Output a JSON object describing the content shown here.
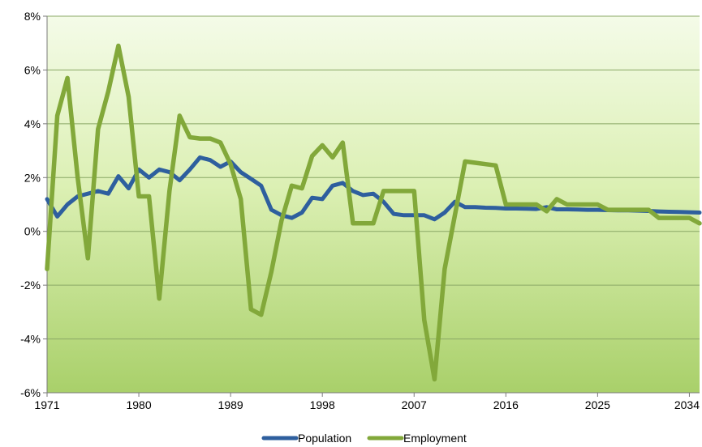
{
  "chart_data": {
    "type": "line",
    "x": [
      1971,
      1972,
      1973,
      1974,
      1975,
      1976,
      1977,
      1978,
      1979,
      1980,
      1981,
      1982,
      1983,
      1984,
      1985,
      1986,
      1987,
      1988,
      1989,
      1990,
      1991,
      1992,
      1993,
      1994,
      1995,
      1996,
      1997,
      1998,
      1999,
      2000,
      2001,
      2002,
      2003,
      2004,
      2005,
      2006,
      2007,
      2008,
      2009,
      2010,
      2011,
      2012,
      2013,
      2014,
      2015,
      2016,
      2017,
      2018,
      2019,
      2020,
      2021,
      2022,
      2023,
      2024,
      2025,
      2026,
      2027,
      2028,
      2029,
      2030,
      2031,
      2032,
      2033,
      2034,
      2035
    ],
    "xticks": [
      "1971",
      "1980",
      "1989",
      "1998",
      "2007",
      "2016",
      "2025",
      "2034"
    ],
    "ylim": [
      -6,
      8
    ],
    "yticks": [
      "8%",
      "6%",
      "4%",
      "2%",
      "0%",
      "-2%",
      "-4%",
      "-6%"
    ],
    "grid": true,
    "legend": "bottom",
    "series": [
      {
        "name": "Population",
        "color": "#2e5f9e",
        "values": [
          1.2,
          0.55,
          1.0,
          1.3,
          1.4,
          1.5,
          1.4,
          2.05,
          1.6,
          2.3,
          2.0,
          2.3,
          2.2,
          1.9,
          2.3,
          2.75,
          2.65,
          2.4,
          2.6,
          2.2,
          1.95,
          1.7,
          0.8,
          0.6,
          0.5,
          0.7,
          1.25,
          1.2,
          1.7,
          1.8,
          1.5,
          1.35,
          1.4,
          1.1,
          0.65,
          0.6,
          0.6,
          0.6,
          0.45,
          0.7,
          1.1,
          0.9,
          0.9,
          0.88,
          0.87,
          0.85,
          0.85,
          0.84,
          0.83,
          0.9,
          0.82,
          0.82,
          0.81,
          0.8,
          0.8,
          0.79,
          0.78,
          0.78,
          0.77,
          0.76,
          0.74,
          0.73,
          0.72,
          0.71,
          0.7
        ]
      },
      {
        "name": "Employment",
        "color": "#82a83a",
        "values": [
          -1.4,
          4.3,
          5.7,
          2.0,
          -1.0,
          3.8,
          5.2,
          6.9,
          5.0,
          1.3,
          1.3,
          -2.5,
          1.5,
          4.3,
          3.5,
          3.45,
          3.45,
          3.3,
          2.5,
          1.2,
          -2.9,
          -3.1,
          -1.5,
          0.4,
          1.7,
          1.6,
          2.8,
          3.2,
          2.75,
          3.3,
          0.3,
          0.3,
          0.3,
          1.5,
          1.5,
          1.5,
          1.5,
          -3.3,
          -5.5,
          -1.4,
          0.6,
          2.6,
          2.55,
          2.5,
          2.45,
          1.0,
          1.0,
          1.0,
          1.0,
          0.75,
          1.2,
          1.0,
          1.0,
          1.0,
          1.0,
          0.8,
          0.8,
          0.8,
          0.8,
          0.8,
          0.5,
          0.5,
          0.5,
          0.5,
          0.3
        ]
      }
    ]
  }
}
